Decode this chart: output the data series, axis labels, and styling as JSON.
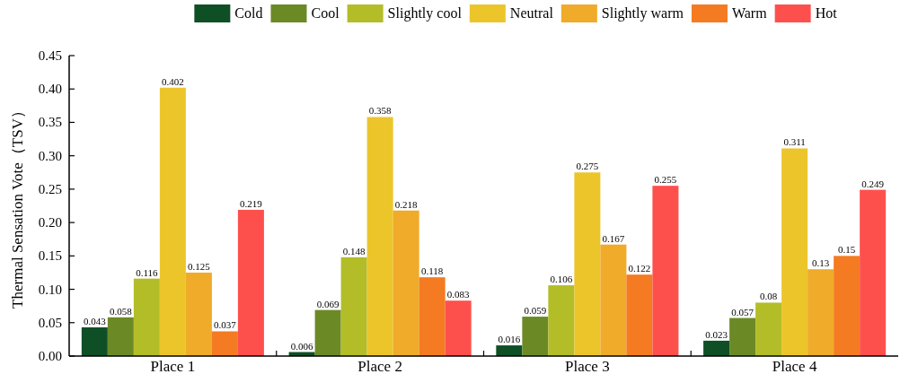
{
  "chart_data": {
    "type": "bar",
    "ylabel": "Thermal Sensation Vote（TSV）",
    "categories": [
      "Place 1",
      "Place 2",
      "Place 3",
      "Place 4"
    ],
    "series": [
      {
        "name": "Cold",
        "color": "#0f4f26",
        "values": [
          0.043,
          0.006,
          0.016,
          0.023
        ]
      },
      {
        "name": "Cool",
        "color": "#6b8a26",
        "values": [
          0.058,
          0.069,
          0.059,
          0.057
        ]
      },
      {
        "name": "Slightly cool",
        "color": "#b3bd27",
        "values": [
          0.116,
          0.148,
          0.106,
          0.08
        ]
      },
      {
        "name": "Neutral",
        "color": "#ecc52a",
        "values": [
          0.402,
          0.358,
          0.275,
          0.311
        ]
      },
      {
        "name": "Slightly warm",
        "color": "#efab29",
        "values": [
          0.125,
          0.218,
          0.167,
          0.13
        ]
      },
      {
        "name": "Warm",
        "color": "#f47b22",
        "values": [
          0.037,
          0.118,
          0.122,
          0.15
        ]
      },
      {
        "name": "Hot",
        "color": "#fd504d",
        "values": [
          0.219,
          0.083,
          0.255,
          0.249
        ]
      }
    ],
    "ylim": [
      0,
      0.45
    ],
    "yticks": [
      {
        "value": 0,
        "label": "0.00"
      },
      {
        "value": 0.05,
        "label": "0.05"
      },
      {
        "value": 0.1,
        "label": "0.10"
      },
      {
        "value": 0.15,
        "label": "0.15"
      },
      {
        "value": 0.2,
        "label": "0.20"
      },
      {
        "value": 0.25,
        "label": "0.25"
      },
      {
        "value": 0.3,
        "label": "0.30"
      },
      {
        "value": 0.35,
        "label": "0.35"
      },
      {
        "value": 0.4,
        "label": "0.40"
      },
      {
        "value": 0.45,
        "label": "0.45"
      }
    ],
    "data_labels": true,
    "legend": "top",
    "grid": false
  }
}
